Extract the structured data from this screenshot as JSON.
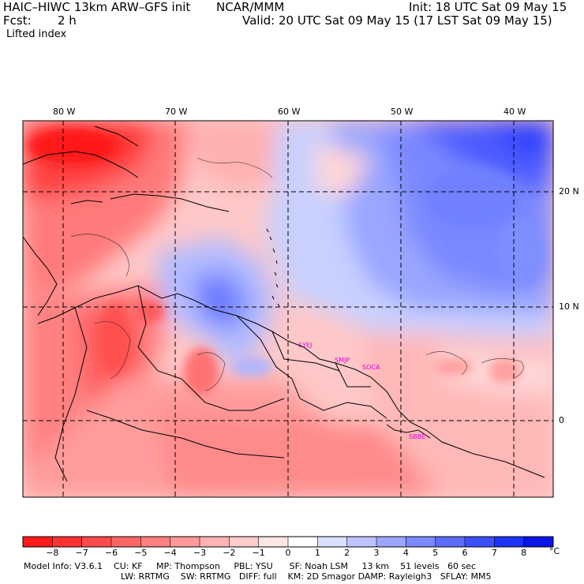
{
  "header": {
    "model": "HAIC–HIWC 13km ARW–GFS init",
    "center": "NCAR/MMM",
    "init": "Init: 18 UTC Sat 09 May 15",
    "fcst_label": "Fcst:",
    "fcst_value": "2 h",
    "valid": "Valid: 20 UTC Sat 09 May 15 (17 LST Sat 09 May 15)",
    "field": "Lifted index"
  },
  "map": {
    "lon_labels": [
      "80 W",
      "70 W",
      "60 W",
      "50 W",
      "40 W"
    ],
    "lat_labels": [
      "20 N",
      "10 N",
      "0"
    ],
    "stations": [
      "SYEJ",
      "SMJP",
      "SOCA",
      "SBBE"
    ]
  },
  "colorbar": {
    "labels": [
      "−8",
      "−7",
      "−6",
      "−5",
      "−4",
      "−3",
      "−2",
      "−1",
      "0",
      "1",
      "2",
      "3",
      "4",
      "5",
      "6",
      "7",
      "8"
    ],
    "unit": "°C",
    "colors": [
      "#ff1a1a",
      "#ff3333",
      "#ff4d4d",
      "#ff6666",
      "#ff8080",
      "#ff9999",
      "#ffb3b3",
      "#ffcccc",
      "#ffe6e6",
      "#ffffff",
      "#dce0ff",
      "#bcc3ff",
      "#9ca6ff",
      "#7c89ff",
      "#5c6cff",
      "#3c4fff",
      "#1c32ff",
      "#0a14e6"
    ]
  },
  "model_info": {
    "line1": "Model Info: V3.6.1    CU: KF     MP: Thompson     PBL: YSU      SF: Noah LSM     13 km    51 levels   60 sec",
    "line2": "LW: RRTMG    SW: RRTMG   DIFF: full    KM: 2D Smagor DAMP: Rayleigh3   SFLAY: MM5"
  }
}
